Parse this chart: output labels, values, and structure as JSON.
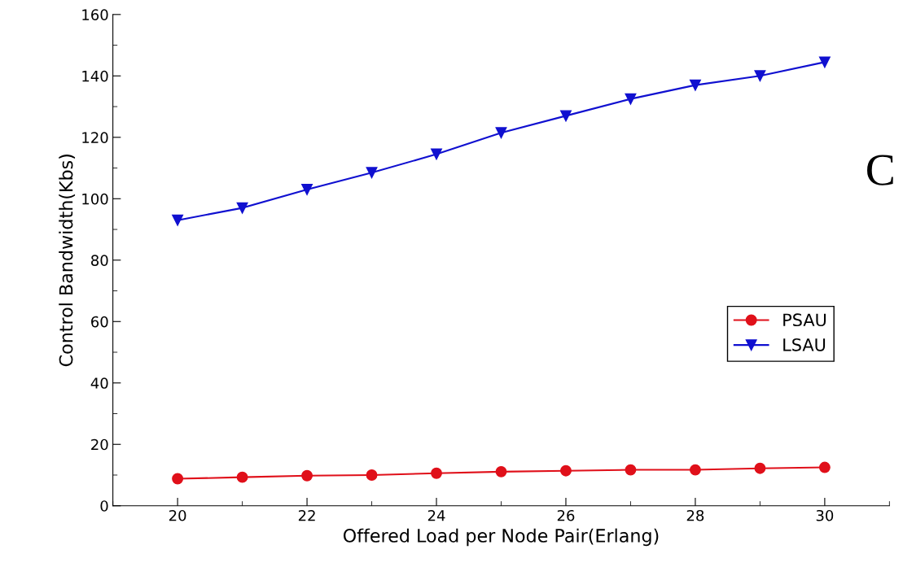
{
  "chart_data": {
    "type": "line",
    "xlabel": "Offered Load per Node Pair(Erlang)",
    "ylabel": "Control Bandwidth(Kbs)",
    "x": [
      20,
      21,
      22,
      23,
      24,
      25,
      26,
      27,
      28,
      29,
      30
    ],
    "series": [
      {
        "name": "PSAU",
        "color": "#e0101a",
        "marker": "circle",
        "values": [
          8.8,
          9.3,
          9.8,
          10,
          10.6,
          11.1,
          11.4,
          11.7,
          11.7,
          12.2,
          12.5
        ]
      },
      {
        "name": "LSAU",
        "color": "#1010d0",
        "marker": "triangle",
        "values": [
          93,
          97,
          103,
          108.5,
          114.5,
          121.5,
          127,
          132.5,
          137,
          140,
          144.5
        ]
      }
    ],
    "xlim": [
      19,
      31
    ],
    "xticks": [
      20,
      22,
      24,
      26,
      28,
      30
    ],
    "ylim": [
      0,
      160
    ],
    "yticks": [
      0,
      20,
      40,
      60,
      80,
      100,
      120,
      140,
      160
    ],
    "grid": false,
    "legend": "right",
    "line_style": "solid",
    "annotations": [
      "C"
    ]
  }
}
